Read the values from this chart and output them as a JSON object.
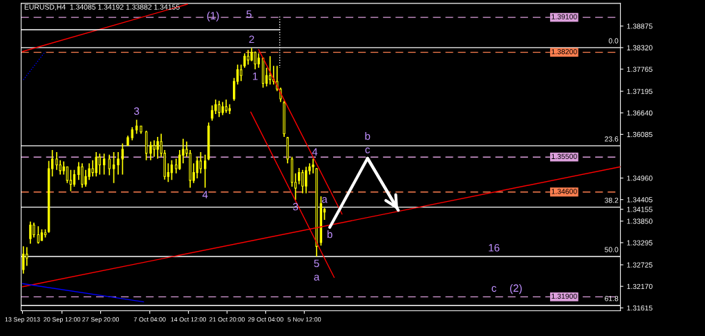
{
  "chart_data": {
    "type": "candlestick",
    "title": "EURUSD,H4  1.34085 1.34192 1.33882 1.34155",
    "color": "#ffff00",
    "x": [
      "2013-09-13T04:00",
      "2013-09-13T20:00",
      "2013-09-14T12:00",
      "2013-09-15T04:00",
      "2013-09-16T00:00",
      "2013-09-16T16:00",
      "2013-09-17T08:00",
      "2013-09-18T00:00",
      "2013-09-18T16:00",
      "2013-09-19T12:00",
      "2013-09-20T04:00",
      "2013-09-20T20:00",
      "2013-09-21T12:00",
      "2013-09-22T04:00",
      "2013-09-22T20:00",
      "2013-09-23T16:00",
      "2013-09-24T08:00",
      "2013-09-25T00:00",
      "2013-09-25T16:00",
      "2013-09-26T08:00",
      "2013-09-27T00:00",
      "2013-09-27T16:00",
      "2013-09-28T12:00",
      "2013-09-29T12:00",
      "2013-09-30T08:00",
      "2013-10-01T04:00",
      "2013-10-02T00:00",
      "2013-10-03T00:00",
      "2013-10-03T20:00",
      "2013-10-04T16:00",
      "2013-10-05T12:00",
      "2013-10-06T12:00",
      "2013-10-07T08:00",
      "2013-10-08T00:00",
      "2013-10-08T16:00",
      "2013-10-09T08:00",
      "2013-10-10T00:00",
      "2013-10-10T16:00",
      "2013-10-11T08:00",
      "2013-10-12T04:00",
      "2013-10-12T20:00",
      "2013-10-13T12:00",
      "2013-10-14T04:00",
      "2013-10-14T20:00",
      "2013-10-15T12:00",
      "2013-10-16T04:00",
      "2013-10-16T20:00",
      "2013-10-17T16:00",
      "2013-10-18T08:00",
      "2013-10-19T00:00",
      "2013-10-19T16:00",
      "2013-10-20T08:00",
      "2013-10-21T00:00",
      "2013-10-21T16:00",
      "2013-10-22T08:00",
      "2013-10-23T04:00",
      "2013-10-23T20:00",
      "2013-10-24T12:00",
      "2013-10-25T04:00",
      "2013-10-25T20:00",
      "2013-10-26T12:00",
      "2013-10-27T04:00",
      "2013-10-27T20:00",
      "2013-10-28T16:00",
      "2013-10-29T08:00",
      "2013-10-30T00:00",
      "2013-10-30T16:00",
      "2013-10-31T08:00",
      "2013-11-01T00:00",
      "2013-11-01T16:00",
      "2013-11-02T08:00",
      "2013-11-03T04:00",
      "2013-11-03T20:00",
      "2013-11-04T12:00",
      "2013-11-05T04:00",
      "2013-11-05T20:00",
      "2013-11-06T12:00",
      "2013-11-07T04:00",
      "2013-11-07T20:00",
      "2013-11-08T16:00",
      "2013-11-09T08:00"
    ],
    "ohlc": [
      [
        1.326,
        1.332,
        1.325,
        1.33
      ],
      [
        1.33,
        1.3318,
        1.327,
        1.329
      ],
      [
        1.334,
        1.3384,
        1.3327,
        1.3375
      ],
      [
        1.3375,
        1.3381,
        1.3343,
        1.335
      ],
      [
        1.335,
        1.3372,
        1.3327,
        1.333
      ],
      [
        1.3335,
        1.3364,
        1.3335,
        1.3355
      ],
      [
        1.3355,
        1.3364,
        1.3343,
        1.335
      ],
      [
        1.3358,
        1.354,
        1.3355,
        1.352
      ],
      [
        1.352,
        1.3568,
        1.35,
        1.3545
      ],
      [
        1.3545,
        1.3563,
        1.3517,
        1.353
      ],
      [
        1.353,
        1.3542,
        1.3505,
        1.3515
      ],
      [
        1.3515,
        1.3539,
        1.3505,
        1.3525
      ],
      [
        1.3525,
        1.3525,
        1.3483,
        1.349
      ],
      [
        1.349,
        1.3517,
        1.3462,
        1.348
      ],
      [
        1.348,
        1.3517,
        1.3474,
        1.3505
      ],
      [
        1.3505,
        1.3537,
        1.3491,
        1.3525
      ],
      [
        1.3525,
        1.3534,
        1.3471,
        1.348
      ],
      [
        1.348,
        1.3517,
        1.3474,
        1.35
      ],
      [
        1.35,
        1.3534,
        1.3491,
        1.352
      ],
      [
        1.352,
        1.3542,
        1.35,
        1.351
      ],
      [
        1.351,
        1.3563,
        1.35,
        1.355
      ],
      [
        1.355,
        1.3559,
        1.3505,
        1.353
      ],
      [
        1.353,
        1.3559,
        1.3505,
        1.3545
      ],
      [
        1.3545,
        1.3556,
        1.3503,
        1.352
      ],
      [
        1.352,
        1.3563,
        1.3483,
        1.353
      ],
      [
        1.353,
        1.3563,
        1.3505,
        1.3545
      ],
      [
        1.3545,
        1.3585,
        1.3505,
        1.357
      ],
      [
        1.358,
        1.3605,
        1.358,
        1.36
      ],
      [
        1.36,
        1.3627,
        1.3593,
        1.362
      ],
      [
        1.362,
        1.3646,
        1.361,
        1.363
      ],
      [
        1.363,
        1.363,
        1.361,
        1.3615
      ],
      [
        1.3615,
        1.3618,
        1.3542,
        1.356
      ],
      [
        1.356,
        1.359,
        1.3542,
        1.358
      ],
      [
        1.358,
        1.3593,
        1.3551,
        1.357
      ],
      [
        1.357,
        1.3602,
        1.3546,
        1.359
      ],
      [
        1.359,
        1.361,
        1.3551,
        1.356
      ],
      [
        1.356,
        1.3568,
        1.3492,
        1.35
      ],
      [
        1.35,
        1.3534,
        1.3486,
        1.351
      ],
      [
        1.351,
        1.3542,
        1.3491,
        1.353
      ],
      [
        1.353,
        1.3546,
        1.3508,
        1.352
      ],
      [
        1.352,
        1.3568,
        1.3517,
        1.3555
      ],
      [
        1.3555,
        1.3597,
        1.3534,
        1.357
      ],
      [
        1.357,
        1.359,
        1.3551,
        1.356
      ],
      [
        1.356,
        1.3568,
        1.3471,
        1.349
      ],
      [
        1.349,
        1.3534,
        1.3483,
        1.351
      ],
      [
        1.351,
        1.3551,
        1.3495,
        1.354
      ],
      [
        1.354,
        1.3563,
        1.3508,
        1.352
      ],
      [
        1.352,
        1.3556,
        1.3471,
        1.354
      ],
      [
        1.3545,
        1.3639,
        1.3542,
        1.363
      ],
      [
        1.365,
        1.3683,
        1.3644,
        1.367
      ],
      [
        1.367,
        1.3698,
        1.3661,
        1.3685
      ],
      [
        1.3685,
        1.3695,
        1.3653,
        1.3665
      ],
      [
        1.3665,
        1.3692,
        1.3658,
        1.368
      ],
      [
        1.368,
        1.3698,
        1.3664,
        1.367
      ],
      [
        1.367,
        1.3686,
        1.3661,
        1.3675
      ],
      [
        1.37,
        1.3754,
        1.3695,
        1.3745
      ],
      [
        1.3745,
        1.3788,
        1.3737,
        1.3775
      ],
      [
        1.3775,
        1.3788,
        1.3746,
        1.376
      ],
      [
        1.3785,
        1.3817,
        1.378,
        1.381
      ],
      [
        1.381,
        1.3826,
        1.3788,
        1.38
      ],
      [
        1.38,
        1.3831,
        1.3797,
        1.382
      ],
      [
        1.382,
        1.3822,
        1.3776,
        1.379
      ],
      [
        1.379,
        1.3817,
        1.378,
        1.3805
      ],
      [
        1.3805,
        1.3805,
        1.3729,
        1.374
      ],
      [
        1.374,
        1.378,
        1.3732,
        1.376
      ],
      [
        1.376,
        1.381,
        1.3737,
        1.375
      ],
      [
        1.375,
        1.3785,
        1.3737,
        1.3745
      ],
      [
        1.3745,
        1.3785,
        1.372,
        1.3725
      ],
      [
        1.3725,
        1.3729,
        1.3692,
        1.37
      ],
      [
        1.369,
        1.3695,
        1.3602,
        1.361
      ],
      [
        1.36,
        1.3602,
        1.3534,
        1.3545
      ],
      [
        1.3545,
        1.3551,
        1.3474,
        1.3485
      ],
      [
        1.3485,
        1.3508,
        1.344,
        1.347
      ],
      [
        1.349,
        1.3522,
        1.348,
        1.351
      ],
      [
        1.351,
        1.3517,
        1.3457,
        1.3475
      ],
      [
        1.3475,
        1.3525,
        1.3457,
        1.3515
      ],
      [
        1.3515,
        1.3534,
        1.3505,
        1.3525
      ],
      [
        1.3525,
        1.3546,
        1.3508,
        1.353
      ],
      [
        1.352,
        1.3522,
        1.3294,
        1.332
      ],
      [
        1.333,
        1.3449,
        1.3322,
        1.343
      ],
      [
        1.34085,
        1.34192,
        1.33882,
        1.34155
      ]
    ],
    "series": [
      {
        "type": "line",
        "color": "#ff0000",
        "x": [
          "2013-09-13T00:00",
          "2013-10-14T08:00"
        ],
        "values": [
          1.3822,
          1.3944
        ]
      },
      {
        "type": "line",
        "color": "#0000ff",
        "line_style": "dotted",
        "x": [
          "2013-09-13T04:00",
          "2013-09-17T08:00"
        ],
        "values": [
          1.3749,
          1.3822
        ]
      },
      {
        "type": "line",
        "color": "#ff0000",
        "x": [
          "2013-09-13T00:00",
          "2014-01-04T12:00"
        ],
        "values": [
          1.3216,
          1.3525
        ]
      },
      {
        "type": "line",
        "color": "#0000ff",
        "x": [
          "2013-09-13T00:00",
          "2013-10-06T00:00"
        ],
        "values": [
          1.3224,
          1.3177
        ]
      },
      {
        "type": "line",
        "color": "#ff0000",
        "x": [
          "2013-10-27T20:00",
          "2013-11-12T16:00"
        ],
        "values": [
          1.3827,
          1.3403
        ]
      },
      {
        "type": "line",
        "color": "#ff0000",
        "x": [
          "2013-10-26T08:00",
          "2013-11-11T04:00"
        ],
        "values": [
          1.3666,
          1.324
        ]
      },
      {
        "type": "line",
        "color": "#ffffff",
        "x": [
          "2013-09-12T18:00",
          "2013-10-31T20:00"
        ],
        "values": [
          1.3878,
          1.3878
        ]
      },
      {
        "type": "line",
        "color": "#ffffff",
        "line_style": "dotted",
        "x": [
          "2013-10-31T20:00",
          "2013-10-31T20:00"
        ],
        "values": [
          1.3912,
          1.378
        ]
      },
      {
        "type": "line",
        "color": "#ffffff",
        "x": [
          "2013-11-10T08:00",
          "2013-11-17T12:00",
          "2013-11-23T08:00"
        ],
        "values": [
          1.3369,
          1.3547,
          1.3413
        ]
      }
    ],
    "ref_lines": [
      {
        "axis": "y",
        "value": 1.3832,
        "color": "#ffffff",
        "line_style": "solid"
      },
      {
        "axis": "y",
        "value": 1.3579,
        "color": "#ffffff",
        "line_style": "solid"
      },
      {
        "axis": "y",
        "value": 1.3421,
        "color": "#ffffff",
        "line_style": "solid"
      },
      {
        "axis": "y",
        "value": 1.3294,
        "color": "#ffffff",
        "line_style": "solid"
      },
      {
        "axis": "y",
        "value": 1.3168,
        "color": "#ffffff",
        "line_style": "solid"
      },
      {
        "axis": "y",
        "value": 1.391,
        "label": "1.39100",
        "color": "#dda0dd",
        "line_style": "dashed"
      },
      {
        "axis": "y",
        "value": 1.382,
        "label": "1.38200",
        "color": "#ff7f50",
        "line_style": "dashed"
      },
      {
        "axis": "y",
        "value": 1.355,
        "label": "1.35500",
        "color": "#dda0dd",
        "line_style": "dashed"
      },
      {
        "axis": "y",
        "value": 1.346,
        "label": "1.34600",
        "color": "#ff7f50",
        "line_style": "dashed"
      },
      {
        "axis": "y",
        "value": 1.319,
        "label": "1.31900",
        "color": "#dda0dd",
        "line_style": "dashed"
      }
    ],
    "annotations": [
      {
        "text": "(1)",
        "x": "2013-10-19T04:00",
        "y": 1.3912
      },
      {
        "text": "5",
        "x": "2013-10-26T00:00",
        "y": 1.3916
      },
      {
        "text": "2",
        "x": "2013-10-26T12:00",
        "y": 1.3831
      },
      {
        "text": "1",
        "x": "2013-10-27T04:00",
        "y": 1.3776
      },
      {
        "text": "3",
        "x": "2013-10-04T16:00",
        "y": 1.3646
      },
      {
        "text": "4",
        "x": "2013-10-17T16:00",
        "y": 1.3471
      },
      {
        "text": "4",
        "x": "2013-11-07T12:00",
        "y": 1.3561
      },
      {
        "text": "3",
        "x": "2013-11-03T20:00",
        "y": 1.344
      },
      {
        "text": "a",
        "x": "2013-11-09T08:00",
        "y": 1.34192
      },
      {
        "text": "b",
        "x": "2013-11-10T08:00",
        "y": 1.3369
      },
      {
        "text": "5",
        "x": "2013-11-07T20:00",
        "y": 1.3294
      },
      {
        "text": "a",
        "x": "2013-11-07T20:00",
        "y": 1.3294
      },
      {
        "text": "c",
        "x": "2013-11-17T12:00",
        "y": 1.3547
      },
      {
        "text": "b",
        "x": "2013-11-17T12:00",
        "y": 1.3547
      },
      {
        "text": "16",
        "x": "2013-12-11T12:00",
        "y": 1.3294
      },
      {
        "text": "c",
        "x": "2013-12-11T12:00",
        "y": 1.319
      },
      {
        "text": "(2)",
        "x": "2013-12-15T16:00",
        "y": 1.319
      },
      {
        "text": "0.0",
        "x": "2014-01-04T12:00",
        "y": 1.3832
      },
      {
        "text": "23.6",
        "x": "2014-01-04T12:00",
        "y": 1.3579
      },
      {
        "text": "38.2",
        "x": "2014-01-04T12:00",
        "y": 1.3421
      },
      {
        "text": "50.0",
        "x": "2014-01-04T12:00",
        "y": 1.3294
      },
      {
        "text": "61.8",
        "x": "2014-01-04T12:00",
        "y": 1.3168
      }
    ],
    "xlim": [
      "2013-09-12T18:00",
      "2014-01-04T12:00"
    ],
    "xticks": [
      {
        "value": "2013-09-13",
        "label": "13 Sep 2013"
      },
      {
        "value": "2013-09-20T12:00",
        "label": "20 Sep 12:00"
      },
      {
        "value": "2013-09-27T20:00",
        "label": "27 Sep 20:00"
      },
      {
        "value": "2013-10-07T04:00",
        "label": "7 Oct 04:00"
      },
      {
        "value": "2013-10-14T12:00",
        "label": "14 Oct 12:00"
      },
      {
        "value": "2013-10-21T20:00",
        "label": "21 Oct 20:00"
      },
      {
        "value": "2013-10-29T04:00",
        "label": "29 Oct 04:00"
      },
      {
        "value": "2013-11-05T12:00",
        "label": "5 Nov 12:00"
      }
    ],
    "ylim": [
      1.3154,
      1.3946
    ],
    "yticks": [
      {
        "value": 1.38875,
        "label": "1.38875"
      },
      {
        "value": 1.3832,
        "label": "1.38320"
      },
      {
        "value": 1.37765,
        "label": "1.37765"
      },
      {
        "value": 1.37195,
        "label": "1.37195"
      },
      {
        "value": 1.3664,
        "label": "1.36640"
      },
      {
        "value": 1.36085,
        "label": "1.36085"
      },
      {
        "value": 1.3496,
        "label": "1.34960"
      },
      {
        "value": 1.34405,
        "label": "1.34405"
      },
      {
        "value": 1.34155,
        "label": "1.34155"
      },
      {
        "value": 1.3385,
        "label": "1.33850"
      },
      {
        "value": 1.33295,
        "label": "1.33295"
      },
      {
        "value": 1.32725,
        "label": "1.32725"
      },
      {
        "value": 1.3217,
        "label": "1.32170"
      },
      {
        "value": 1.31615,
        "label": "1.31615"
      }
    ]
  }
}
